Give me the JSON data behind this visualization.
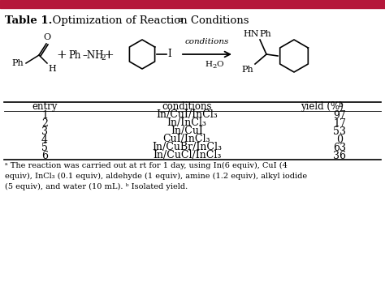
{
  "title_bold": "Table 1.",
  "title_normal": "  Optimization of Reaction Conditions",
  "title_super": "a",
  "bg_color": "#ffffff",
  "red_bar": "#b5173a",
  "header_row": [
    "entry",
    "conditions",
    "yield (%)"
  ],
  "yield_super": "b",
  "rows": [
    [
      "1",
      "In/CuI/InCl₃",
      "97"
    ],
    [
      "2",
      "In/InCl₃",
      "17"
    ],
    [
      "3",
      "In/CuI",
      "53"
    ],
    [
      "4",
      "CuI/InCl₃",
      "0"
    ],
    [
      "5",
      "In/CuBr/InCl₃",
      "63"
    ],
    [
      "6",
      "In/CuCl/InCl₃",
      "36"
    ]
  ],
  "footnote": "ᵃ The reaction was carried out at rt for 1 day, using In(6 equiv), CuI (4\nequiv), InCl₃ (0.1 equiv), aldehyde (1 equiv), amine (1.2 equiv), alkyl iodide\n(5 equiv), and water (10 mL). ᵇ Isolated yield.",
  "fig_width": 4.74,
  "fig_height": 3.69,
  "dpi": 100
}
